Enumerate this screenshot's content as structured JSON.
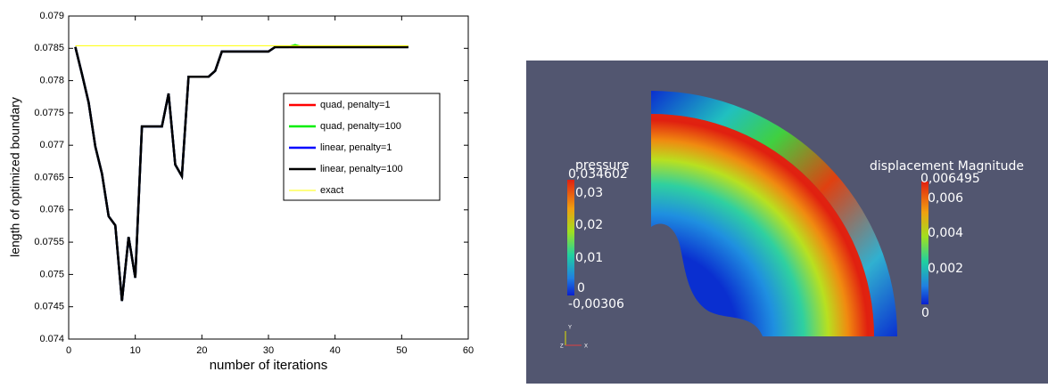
{
  "chart_data": {
    "type": "line",
    "xlabel": "number of iterations",
    "ylabel": "length of optimized boundary",
    "x": [
      1,
      2,
      3,
      4,
      5,
      6,
      7,
      8,
      9,
      10,
      11,
      12,
      13,
      14,
      15,
      16,
      17,
      18,
      19,
      20,
      21,
      22,
      23,
      24,
      25,
      26,
      27,
      28,
      29,
      30,
      31,
      32,
      33,
      34,
      35,
      36,
      37,
      38,
      39,
      40,
      41,
      42,
      43,
      44,
      45,
      46,
      47,
      48,
      49,
      50,
      51
    ],
    "series": [
      {
        "name": "quad, penalty=1",
        "color": "#ff0000",
        "values": [
          0.07852,
          0.0781,
          0.07766,
          0.07698,
          0.07656,
          0.0759,
          0.07576,
          0.07459,
          0.07558,
          0.07495,
          0.07729,
          0.07729,
          0.07729,
          0.07729,
          0.0778,
          0.0767,
          0.07652,
          0.07806,
          0.07806,
          0.07806,
          0.07806,
          0.07815,
          0.07845,
          0.07845,
          0.07845,
          0.07845,
          0.07845,
          0.07845,
          0.07845,
          0.07845,
          0.07852,
          0.07852,
          0.07852,
          0.07852,
          0.07852,
          0.07852,
          0.07852,
          0.07852,
          0.07852,
          0.07852,
          0.07852,
          0.07852,
          0.07852,
          0.07852,
          0.07852,
          0.07852,
          0.07852,
          0.07852,
          0.07852,
          0.07852,
          0.07852
        ]
      },
      {
        "name": "quad, penalty=100",
        "color": "#00ee00",
        "values": [
          0.07852,
          0.0781,
          0.07766,
          0.07698,
          0.07656,
          0.0759,
          0.07576,
          0.07459,
          0.07558,
          0.07495,
          0.07729,
          0.07729,
          0.07729,
          0.07729,
          0.0778,
          0.0767,
          0.07652,
          0.07806,
          0.07806,
          0.07806,
          0.07806,
          0.07815,
          0.07845,
          0.07845,
          0.07845,
          0.07845,
          0.07845,
          0.07845,
          0.07845,
          0.07845,
          0.07852,
          0.07852,
          0.07852,
          0.07855,
          0.07852,
          0.07852,
          0.07852,
          0.07852,
          0.07852,
          0.07852,
          0.07852,
          0.07852,
          0.07852,
          0.07852,
          0.07852,
          0.07852,
          0.07852,
          0.07852,
          0.07852,
          0.07852,
          0.07852
        ]
      },
      {
        "name": "linear, penalty=1",
        "color": "#0000ff",
        "values": [
          0.07852,
          0.0781,
          0.07766,
          0.07698,
          0.07656,
          0.0759,
          0.07576,
          0.07459,
          0.07558,
          0.07495,
          0.07729,
          0.07729,
          0.07729,
          0.07729,
          0.0778,
          0.0767,
          0.07652,
          0.07806,
          0.07806,
          0.07806,
          0.07806,
          0.07815,
          0.07845,
          0.07845,
          0.07845,
          0.07845,
          0.07845,
          0.07845,
          0.07845,
          0.07845,
          0.07852,
          0.07852,
          0.07852,
          0.07852,
          0.07852,
          0.07852,
          0.07852,
          0.07852,
          0.07852,
          0.07852,
          0.07852,
          0.07852,
          0.07852,
          0.07852,
          0.07852,
          0.07852,
          0.07852,
          0.07852,
          0.07852,
          0.07852,
          0.07852
        ]
      },
      {
        "name": "linear, penalty=100",
        "color": "#000000",
        "values": [
          0.07852,
          0.0781,
          0.07766,
          0.07698,
          0.07656,
          0.0759,
          0.07576,
          0.07459,
          0.07558,
          0.07495,
          0.07729,
          0.07729,
          0.07729,
          0.07729,
          0.0778,
          0.0767,
          0.07652,
          0.07806,
          0.07806,
          0.07806,
          0.07806,
          0.07815,
          0.07845,
          0.07845,
          0.07845,
          0.07845,
          0.07845,
          0.07845,
          0.07845,
          0.07845,
          0.07852,
          0.07852,
          0.07852,
          0.07852,
          0.07852,
          0.07852,
          0.07852,
          0.07852,
          0.07852,
          0.07852,
          0.07852,
          0.07852,
          0.07852,
          0.07852,
          0.07852,
          0.07852,
          0.07852,
          0.07852,
          0.07852,
          0.07852,
          0.07852
        ]
      },
      {
        "name": "exact",
        "color": "#ffff00",
        "x": [
          1,
          51
        ],
        "values": [
          0.07854,
          0.07854
        ]
      }
    ],
    "xlim": [
      0,
      60
    ],
    "xticks": [
      0,
      10,
      20,
      30,
      40,
      50,
      60
    ],
    "ylim": [
      0.074,
      0.079
    ],
    "yticks": [
      0.074,
      0.0745,
      0.075,
      0.0755,
      0.076,
      0.0765,
      0.077,
      0.0775,
      0.078,
      0.0785,
      0.079
    ],
    "grid": false,
    "legend": "right"
  },
  "render_view": {
    "pressure": {
      "title": "pressure",
      "max": "0,034602",
      "labels": [
        "0,03",
        "0,02",
        "0,01",
        "0"
      ],
      "min": "-0,00306"
    },
    "displacement": {
      "title": "displacement Magnitude",
      "max": "0,006495",
      "labels": [
        "0,006",
        "0,004",
        "0,002"
      ],
      "min": "0"
    },
    "axes": [
      "Y",
      "Z",
      "X"
    ]
  }
}
